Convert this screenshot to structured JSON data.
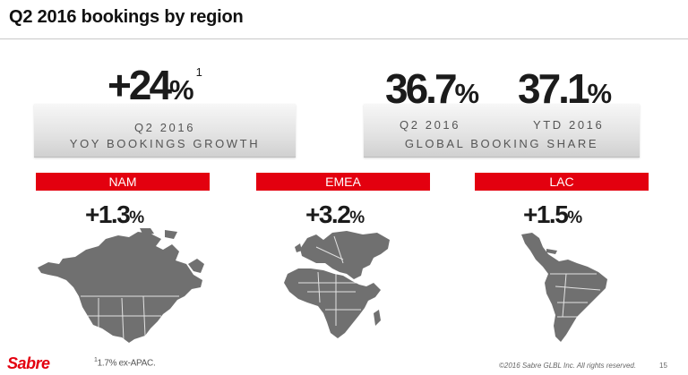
{
  "slide": {
    "title": "Q2 2016 bookings by region"
  },
  "yoy": {
    "value": "+24",
    "unit": "%",
    "footnote_marker": "1",
    "period": "Q2 2016",
    "caption": "YOY BOOKINGS GROWTH"
  },
  "share": {
    "q2_value": "36.7",
    "q2_unit": "%",
    "ytd_value": "37.1",
    "ytd_unit": "%",
    "q2_label": "Q2 2016",
    "ytd_label": "YTD 2016",
    "caption": "GLOBAL BOOKING SHARE"
  },
  "regions": [
    {
      "name": "NAM",
      "value": "+1.3",
      "unit": "%",
      "map_icon": "north-america-map"
    },
    {
      "name": "EMEA",
      "value": "+3.2",
      "unit": "%",
      "map_icon": "europe-middle-east-africa-map"
    },
    {
      "name": "LAC",
      "value": "+1.5",
      "unit": "%",
      "map_icon": "latin-america-map"
    }
  ],
  "colors": {
    "accent_red": "#e3000f",
    "map_gray": "#707070",
    "text_dark": "#1b1b1b"
  },
  "footer": {
    "logo": "Sabre",
    "footnote_marker": "1",
    "footnote_text": "1.7% ex-APAC.",
    "copyright": "©2016 Sabre GLBL Inc. All rights reserved.",
    "page_number": "15"
  }
}
